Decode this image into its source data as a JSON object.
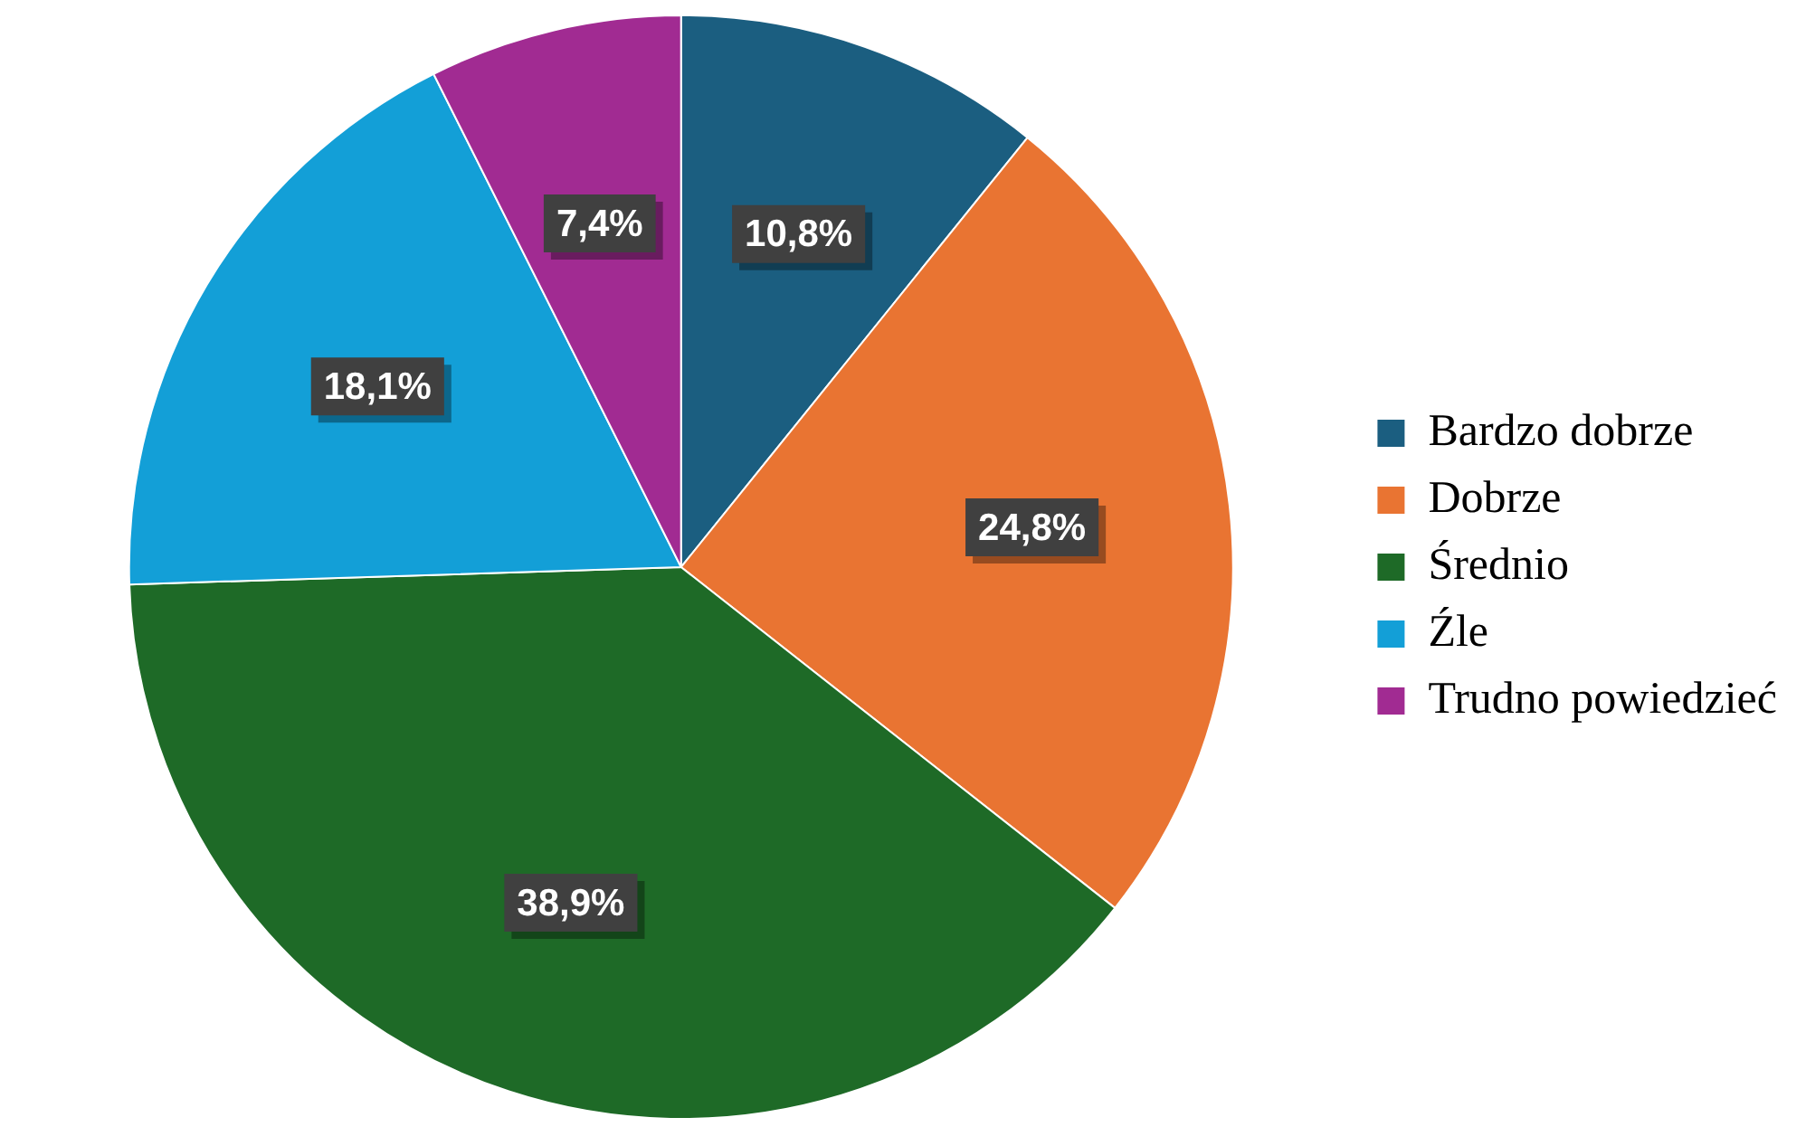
{
  "chart_data": {
    "type": "pie",
    "categories": [
      "Bardzo dobrze",
      "Dobrze",
      "Średnio",
      "Źle",
      "Trudno powiedzieć"
    ],
    "values": [
      10.8,
      24.8,
      38.9,
      18.1,
      7.4
    ],
    "colors": [
      "#1b5e80",
      "#e97432",
      "#1e6a27",
      "#139fd7",
      "#a12b92"
    ],
    "value_labels": [
      "10,8%",
      "24,8%",
      "38,9%",
      "18,1%",
      "7,4%"
    ],
    "legend": "right"
  }
}
